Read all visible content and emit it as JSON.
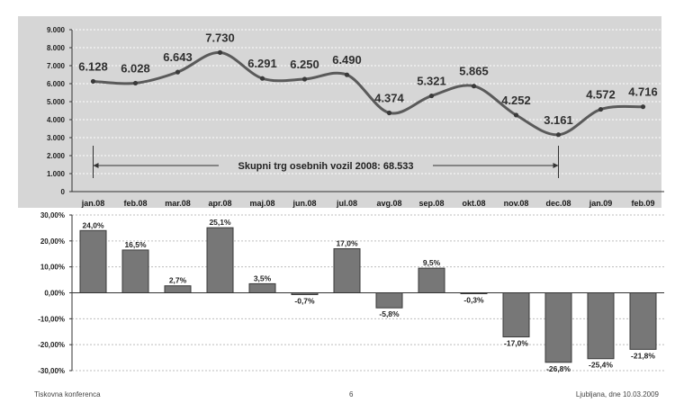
{
  "chart_data": [
    {
      "type": "line",
      "categories": [
        "jan.08",
        "feb.08",
        "mar.08",
        "apr.08",
        "maj.08",
        "jun.08",
        "jul.08",
        "avg.08",
        "sep.08",
        "okt.08",
        "nov.08",
        "dec.08",
        "jan.09",
        "feb.09"
      ],
      "values": [
        6128,
        6028,
        6643,
        7730,
        6291,
        6250,
        6490,
        4374,
        5321,
        5865,
        4252,
        3161,
        4572,
        4716
      ],
      "value_labels": [
        "6.128",
        "6.028",
        "6.643",
        "7.730",
        "6.291",
        "6.250",
        "6.490",
        "4.374",
        "5.321",
        "5.865",
        "4.252",
        "3.161",
        "4.572",
        "4.716"
      ],
      "ylim": [
        0,
        9000
      ],
      "yticks": [
        "0",
        "1.000",
        "2.000",
        "3.000",
        "4.000",
        "5.000",
        "6.000",
        "7.000",
        "8.000",
        "9.000"
      ],
      "grid": true,
      "annotation": "Skupni trg osebnih vozil 2008:   68.533",
      "annotation_span": [
        "jan.08",
        "dec.08"
      ],
      "colors": {
        "line": "#5a5a5a",
        "background": "#d6d6d6"
      }
    },
    {
      "type": "bar",
      "categories": [
        "jan.08",
        "feb.08",
        "mar.08",
        "apr.08",
        "maj.08",
        "jun.08",
        "jul.08",
        "avg.08",
        "sep.08",
        "okt.08",
        "nov.08",
        "dec.08",
        "jan.09",
        "feb.09"
      ],
      "values": [
        24.0,
        16.5,
        2.7,
        25.1,
        3.5,
        -0.7,
        17.0,
        -5.8,
        9.5,
        -0.3,
        -17.0,
        -26.8,
        -25.4,
        -21.8
      ],
      "value_labels": [
        "24,0%",
        "16,5%",
        "2,7%",
        "25,1%",
        "3,5%",
        "-0,7%",
        "17,0%",
        "-5,8%",
        "9,5%",
        "-0,3%",
        "-17,0%",
        "-26,8%",
        "-25,4%",
        "-21,8%"
      ],
      "ylim": [
        -30,
        30
      ],
      "yticks": [
        "30,00%",
        "20,00%",
        "10,00%",
        "0,00%",
        "-10,00%",
        "-20,00%",
        "-30,00%"
      ],
      "grid": true,
      "colors": {
        "bar": "#777777",
        "bar_edge": "#3a3a3a"
      }
    }
  ],
  "footer": {
    "left": "Tiskovna konferenca",
    "center": "6",
    "right": "Ljubljana, dne 10.03.2009"
  }
}
